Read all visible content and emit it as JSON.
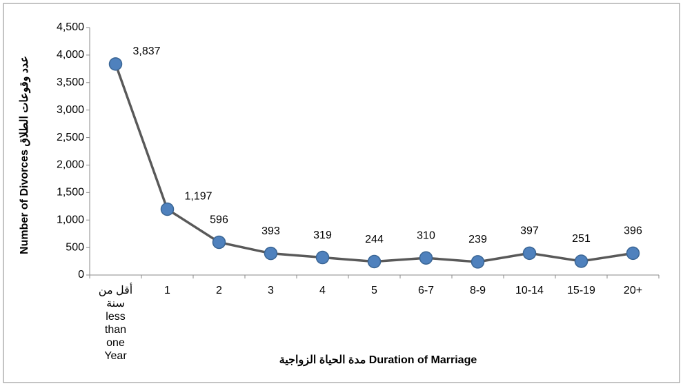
{
  "chart_data": {
    "type": "line",
    "categories": [
      "أقل من\nسنة\nless\nthan\none\nYear",
      "1",
      "2",
      "3",
      "4",
      "5",
      "6-7",
      "8-9",
      "10-14",
      "15-19",
      "20+"
    ],
    "series": [
      {
        "name": "Number of Divorces",
        "color": "#595959",
        "marker_color": "#4f81bd",
        "values": [
          3837,
          1197,
          596,
          393,
          319,
          244,
          310,
          239,
          397,
          251,
          396
        ],
        "value_labels": [
          "3,837",
          "1,197",
          "596",
          "393",
          "319",
          "244",
          "310",
          "239",
          "397",
          "251",
          "396"
        ]
      }
    ],
    "ylim": [
      0,
      4500
    ],
    "yticks": [
      0,
      500,
      {
        "value": 1000,
        "label": "1,000"
      },
      {
        "value": 1500,
        "label": "1,500"
      },
      {
        "value": 2000,
        "label": "2,000"
      },
      {
        "value": 2500,
        "label": "2,500"
      },
      {
        "value": 3000,
        "label": "3,000"
      },
      {
        "value": 3500,
        "label": "3,500"
      },
      {
        "value": 4000,
        "label": "4,000"
      },
      {
        "value": 4500,
        "label": "4,500"
      }
    ],
    "x_label": "مدة الحياة الزواجية Duration of  Marriage",
    "y_label": "Number of Divorces  عدد وقوعات الطلاق",
    "grid": false
  }
}
